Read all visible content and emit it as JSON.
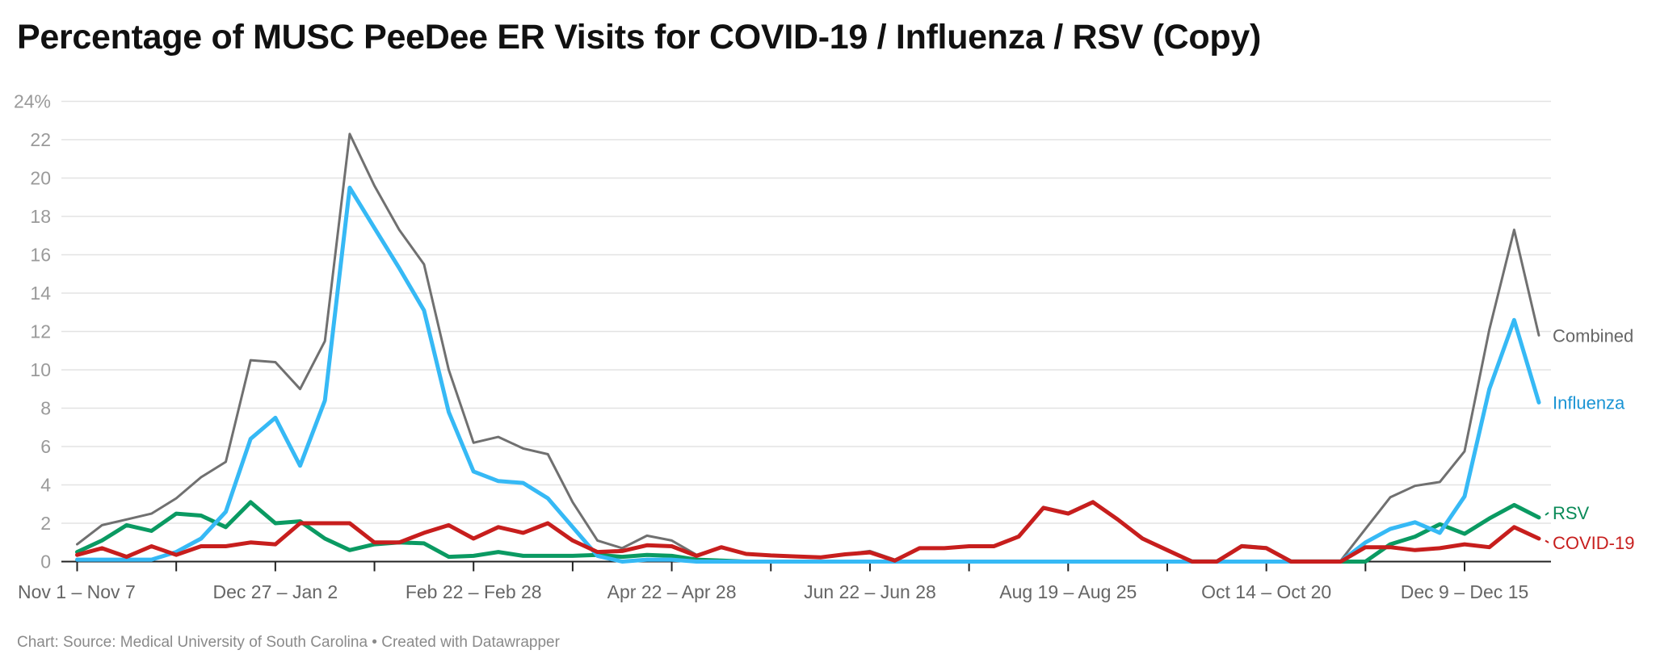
{
  "title": "Percentage of MUSC PeeDee ER Visits for COVID-19 / Influenza / RSV (Copy)",
  "footer": "Chart: Source: Medical University of South Carolina • Created with Datawrapper",
  "chart_data": {
    "type": "line",
    "title": "Percentage of MUSC PeeDee ER Visits for COVID-19 / Influenza / RSV (Copy)",
    "xlabel": "",
    "ylabel": "",
    "ylim": [
      0,
      24
    ],
    "y_ticks": [
      "0",
      "2",
      "4",
      "6",
      "8",
      "10",
      "12",
      "14",
      "16",
      "18",
      "20",
      "22",
      "24%"
    ],
    "x_tick_labels": [
      {
        "index": 0,
        "label": "Nov 1 – Nov 7"
      },
      {
        "index": 8,
        "label": "Dec 27 – Jan 2"
      },
      {
        "index": 16,
        "label": "Feb 22 – Feb 28"
      },
      {
        "index": 24,
        "label": "Apr 22 – Apr 28"
      },
      {
        "index": 32,
        "label": "Jun 22 – Jun 28"
      },
      {
        "index": 40,
        "label": "Aug 19 – Aug 25"
      },
      {
        "index": 48,
        "label": "Oct 14 – Oct 20"
      },
      {
        "index": 56,
        "label": "Dec 9 – Dec 15"
      }
    ],
    "grid": true,
    "legend": "direct labels at line ends (right)",
    "series": [
      {
        "name": "Combined",
        "color": "#707070",
        "label_color": "#666666",
        "values": [
          0.9,
          1.9,
          2.2,
          2.5,
          3.3,
          4.4,
          5.2,
          10.5,
          10.4,
          9.0,
          11.5,
          22.3,
          19.6,
          17.3,
          15.5,
          10.0,
          6.2,
          6.5,
          5.9,
          5.6,
          3.1,
          1.1,
          0.7,
          1.35,
          1.1,
          0.35,
          0.75,
          0.4,
          0.32,
          0.27,
          0.22,
          0.38,
          0.55,
          0.1,
          0.7,
          0.7,
          0.8,
          0.8,
          1.35,
          2.85,
          2.55,
          3.15,
          2.2,
          1.25,
          0.6,
          0.05,
          0.05,
          0.85,
          0.75,
          0.05,
          0.05,
          0.05,
          1.7,
          3.35,
          3.95,
          4.15,
          5.75,
          12.1,
          17.3,
          11.8
        ]
      },
      {
        "name": "Influenza",
        "color": "#36b9f5",
        "label_color": "#1a94d4",
        "values": [
          0.1,
          0.1,
          0.1,
          0.1,
          0.5,
          1.2,
          2.6,
          6.4,
          7.5,
          5.0,
          8.4,
          19.5,
          17.4,
          15.3,
          13.1,
          7.8,
          4.7,
          4.2,
          4.1,
          3.3,
          1.8,
          0.3,
          0.0,
          0.1,
          0.1,
          0,
          0,
          0,
          0,
          0,
          0,
          0,
          0,
          0,
          0,
          0,
          0,
          0,
          0,
          0,
          0,
          0,
          0,
          0,
          0,
          0,
          0,
          0,
          0,
          0,
          0,
          0,
          1.0,
          1.7,
          2.05,
          1.5,
          3.4,
          9.0,
          12.6,
          8.3
        ]
      },
      {
        "name": "RSV",
        "color": "#0a9a62",
        "label_color": "#0a8a58",
        "values": [
          0.5,
          1.1,
          1.9,
          1.6,
          2.5,
          2.4,
          1.8,
          3.1,
          2.0,
          2.1,
          1.2,
          0.6,
          0.9,
          1.0,
          0.95,
          0.25,
          0.3,
          0.5,
          0.3,
          0.3,
          0.3,
          0.35,
          0.25,
          0.35,
          0.3,
          0.1,
          0.05,
          0,
          0,
          0,
          0,
          0,
          0,
          0,
          0,
          0,
          0,
          0,
          0,
          0,
          0,
          0,
          0,
          0,
          0,
          0,
          0,
          0,
          0,
          0,
          0,
          0,
          0,
          0.9,
          1.3,
          1.95,
          1.45,
          2.25,
          2.95,
          2.3
        ]
      },
      {
        "name": "COVID-19",
        "color": "#c71e1d",
        "label_color": "#c71e1d",
        "values": [
          0.35,
          0.7,
          0.25,
          0.8,
          0.35,
          0.8,
          0.8,
          1.0,
          0.9,
          2.0,
          2.0,
          2.0,
          1.0,
          1.0,
          1.5,
          1.9,
          1.2,
          1.8,
          1.5,
          2.0,
          1.1,
          0.5,
          0.55,
          0.85,
          0.8,
          0.3,
          0.75,
          0.4,
          0.32,
          0.27,
          0.22,
          0.38,
          0.48,
          0.05,
          0.7,
          0.7,
          0.8,
          0.8,
          1.3,
          2.8,
          2.5,
          3.1,
          2.2,
          1.2,
          0.6,
          0,
          0,
          0.8,
          0.7,
          0,
          0,
          0,
          0.75,
          0.75,
          0.6,
          0.7,
          0.9,
          0.75,
          1.8,
          1.2
        ]
      }
    ]
  }
}
